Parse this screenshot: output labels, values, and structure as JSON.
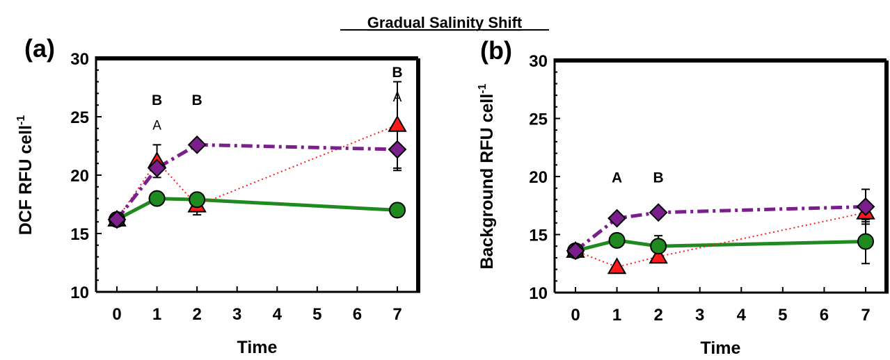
{
  "figure_title": "Gradual Salinity Shift",
  "chart_data": [
    {
      "type": "line",
      "panel_label": "(a)",
      "xlabel": "Time",
      "ylabel": "DCF RFU cell",
      "ylabel_superscript": "-1",
      "x_ticks": [
        "0",
        "1",
        "2",
        "3",
        "4",
        "5",
        "6",
        "7"
      ],
      "xlim": [
        0,
        7
      ],
      "ylim": [
        10,
        30
      ],
      "y_ticks": [
        10,
        15,
        20,
        25,
        30
      ],
      "grid": false,
      "legend": "none",
      "series": [
        {
          "marker": "circle",
          "line": "solid",
          "color": "#1f8a1f",
          "x": [
            0,
            1,
            2,
            7
          ],
          "y": [
            16.2,
            18.0,
            17.9,
            17.0
          ],
          "err": [
            0,
            0,
            0,
            0
          ]
        },
        {
          "marker": "triangle",
          "line": "dotted",
          "color": "#ff1a1a",
          "x": [
            0,
            1,
            2,
            7
          ],
          "y": [
            16.2,
            21.2,
            17.4,
            24.3
          ],
          "err": [
            0,
            1.4,
            0.8,
            3.7
          ]
        },
        {
          "marker": "diamond",
          "line": "dash-dot",
          "color": "#7b1f8c",
          "x": [
            0,
            1,
            2,
            7
          ],
          "y": [
            16.2,
            20.6,
            22.6,
            22.2
          ],
          "err": [
            0,
            0,
            0,
            1.8
          ]
        }
      ],
      "annotations": [
        {
          "text": "B",
          "x": 1,
          "y": 26.0,
          "bold": true
        },
        {
          "text": "A",
          "x": 1,
          "y": 23.9,
          "bold": false
        },
        {
          "text": "B",
          "x": 2,
          "y": 26.0,
          "bold": true
        },
        {
          "text": "B",
          "x": 7,
          "y": 28.4,
          "bold": true
        },
        {
          "text": "A",
          "x": 7,
          "y": 26.3,
          "bold": false
        }
      ]
    },
    {
      "type": "line",
      "panel_label": "(b)",
      "xlabel": "Time",
      "ylabel": "Background RFU cell",
      "ylabel_superscript": "-1",
      "x_ticks": [
        "0",
        "1",
        "2",
        "3",
        "4",
        "5",
        "6",
        "7"
      ],
      "xlim": [
        0,
        7
      ],
      "ylim": [
        10,
        30
      ],
      "y_ticks": [
        10,
        15,
        20,
        25,
        30
      ],
      "grid": false,
      "legend": "none",
      "series": [
        {
          "marker": "circle",
          "line": "solid",
          "color": "#1f8a1f",
          "x": [
            0,
            1,
            2,
            7
          ],
          "y": [
            13.6,
            14.5,
            14.0,
            14.4
          ],
          "err": [
            0,
            0,
            0.9,
            1.9
          ]
        },
        {
          "marker": "triangle",
          "line": "dotted",
          "color": "#ff1a1a",
          "x": [
            0,
            1,
            2,
            7
          ],
          "y": [
            13.6,
            12.2,
            13.1,
            16.9
          ],
          "err": [
            0,
            0,
            0.4,
            0.8
          ]
        },
        {
          "marker": "diamond",
          "line": "dash-dot",
          "color": "#7b1f8c",
          "x": [
            0,
            1,
            2,
            7
          ],
          "y": [
            13.6,
            16.4,
            16.9,
            17.4
          ],
          "err": [
            0,
            0,
            0,
            1.5
          ]
        }
      ],
      "annotations": [
        {
          "text": "A",
          "x": 1,
          "y": 19.5,
          "bold": true
        },
        {
          "text": "B",
          "x": 2,
          "y": 19.5,
          "bold": true
        }
      ]
    }
  ]
}
